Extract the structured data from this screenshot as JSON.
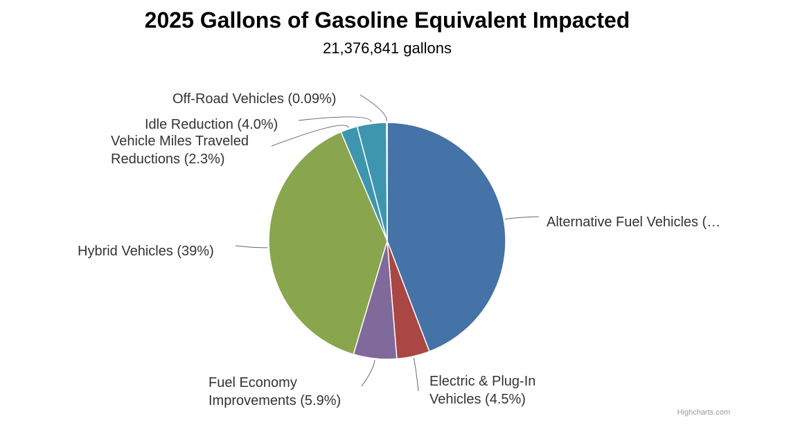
{
  "chart_data": {
    "type": "pie",
    "title": "2025 Gallons of Gasoline Equivalent Impacted",
    "subtitle": "21,376,841 gallons",
    "credits": "Highcharts.com",
    "slices": [
      {
        "label_lines": [
          "Alternative Fuel Vehicles (…"
        ],
        "value": 44.2,
        "color": "#4572a7"
      },
      {
        "label_lines": [
          "Electric & Plug-In",
          "Vehicles (4.5%)"
        ],
        "value": 4.5,
        "color": "#aa4643"
      },
      {
        "label_lines": [
          "Fuel Economy",
          "Improvements (5.9%)"
        ],
        "value": 5.9,
        "color": "#80699b"
      },
      {
        "label_lines": [
          "Hybrid Vehicles (39%)"
        ],
        "value": 39,
        "color": "#89a54e"
      },
      {
        "label_lines": [
          "Vehicle Miles Traveled",
          "Reductions (2.3%)"
        ],
        "value": 2.3,
        "color": "#3d96ae"
      },
      {
        "label_lines": [
          "Idle Reduction (4.0%)"
        ],
        "value": 4.0,
        "color": "#3d96ae"
      },
      {
        "label_lines": [
          "Off-Road Vehicles (0.09%)"
        ],
        "value": 0.09,
        "color": "#b5ca92"
      }
    ]
  }
}
